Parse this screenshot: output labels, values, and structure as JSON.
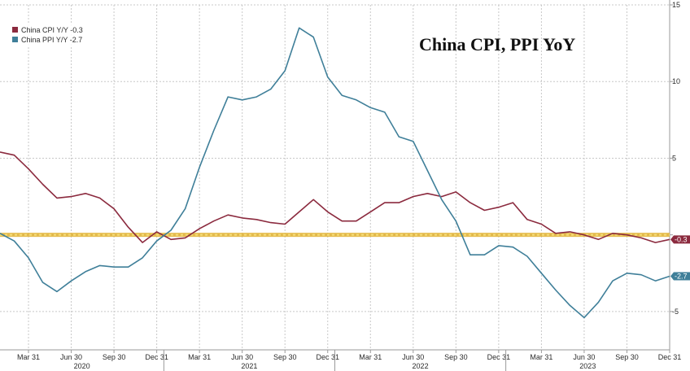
{
  "chart_data": {
    "type": "line",
    "title": "China CPI, PPI YoY",
    "x_tick_labels": [
      "Mar 31",
      "Jun 30",
      "Sep 30",
      "Dec 31",
      "Mar 31",
      "Jun 30",
      "Sep 30",
      "Dec 31",
      "Mar 31",
      "Jun 30",
      "Sep 30",
      "Dec 31",
      "Mar 31",
      "Jun 30",
      "Sep 30",
      "Dec 31"
    ],
    "year_labels": [
      "2020",
      "2021",
      "2022",
      "2023"
    ],
    "y_ticks": [
      15,
      10,
      5,
      0,
      -5
    ],
    "y_tick_labels": [
      "15",
      "10",
      "5",
      "",
      "-5"
    ],
    "ylim": [
      -7.5,
      15
    ],
    "x_months": [
      "2020-01",
      "2020-02",
      "2020-03",
      "2020-04",
      "2020-05",
      "2020-06",
      "2020-07",
      "2020-08",
      "2020-09",
      "2020-10",
      "2020-11",
      "2020-12",
      "2021-01",
      "2021-02",
      "2021-03",
      "2021-04",
      "2021-05",
      "2021-06",
      "2021-07",
      "2021-08",
      "2021-09",
      "2021-10",
      "2021-11",
      "2021-12",
      "2022-01",
      "2022-02",
      "2022-03",
      "2022-04",
      "2022-05",
      "2022-06",
      "2022-07",
      "2022-08",
      "2022-09",
      "2022-10",
      "2022-11",
      "2022-12",
      "2023-01",
      "2023-02",
      "2023-03",
      "2023-04",
      "2023-05",
      "2023-06",
      "2023-07",
      "2023-08",
      "2023-09",
      "2023-10",
      "2023-11",
      "2023-12"
    ],
    "series": [
      {
        "name": "China CPI Y/Y",
        "legend_label": "China CPI Y/Y  -0.3",
        "end_label": "-0.3",
        "color": "#8b2a3e",
        "values": [
          5.4,
          5.2,
          4.3,
          3.3,
          2.4,
          2.5,
          2.7,
          2.4,
          1.7,
          0.5,
          -0.5,
          0.2,
          -0.3,
          -0.2,
          0.4,
          0.9,
          1.3,
          1.1,
          1.0,
          0.8,
          0.7,
          1.5,
          2.3,
          1.5,
          0.9,
          0.9,
          1.5,
          2.1,
          2.1,
          2.5,
          2.7,
          2.5,
          2.8,
          2.1,
          1.6,
          1.8,
          2.1,
          1.0,
          0.7,
          0.1,
          0.2,
          0.0,
          -0.3,
          0.1,
          0.0,
          -0.2,
          -0.5,
          -0.3
        ]
      },
      {
        "name": "China PPI Y/Y",
        "legend_label": "China PPI Y/Y  -2.7",
        "end_label": "-2.7",
        "color": "#3f7f99",
        "values": [
          0.1,
          -0.4,
          -1.5,
          -3.1,
          -3.7,
          -3.0,
          -2.4,
          -2.0,
          -2.1,
          -2.1,
          -1.5,
          -0.4,
          0.3,
          1.7,
          4.4,
          6.8,
          9.0,
          8.8,
          9.0,
          9.5,
          10.7,
          13.5,
          12.9,
          10.3,
          9.1,
          8.8,
          8.3,
          8.0,
          6.4,
          6.1,
          4.2,
          2.3,
          0.9,
          -1.3,
          -1.3,
          -0.7,
          -0.8,
          -1.4,
          -2.5,
          -3.6,
          -4.6,
          -5.4,
          -4.4,
          -3.0,
          -2.5,
          -2.6,
          -3.0,
          -2.7
        ]
      }
    ],
    "reference_line": {
      "value": 0,
      "color": "#e0b030"
    },
    "grid": true,
    "legend_position": "top-left",
    "background": "#ffffff",
    "grid_color": "#c8c8c8"
  }
}
